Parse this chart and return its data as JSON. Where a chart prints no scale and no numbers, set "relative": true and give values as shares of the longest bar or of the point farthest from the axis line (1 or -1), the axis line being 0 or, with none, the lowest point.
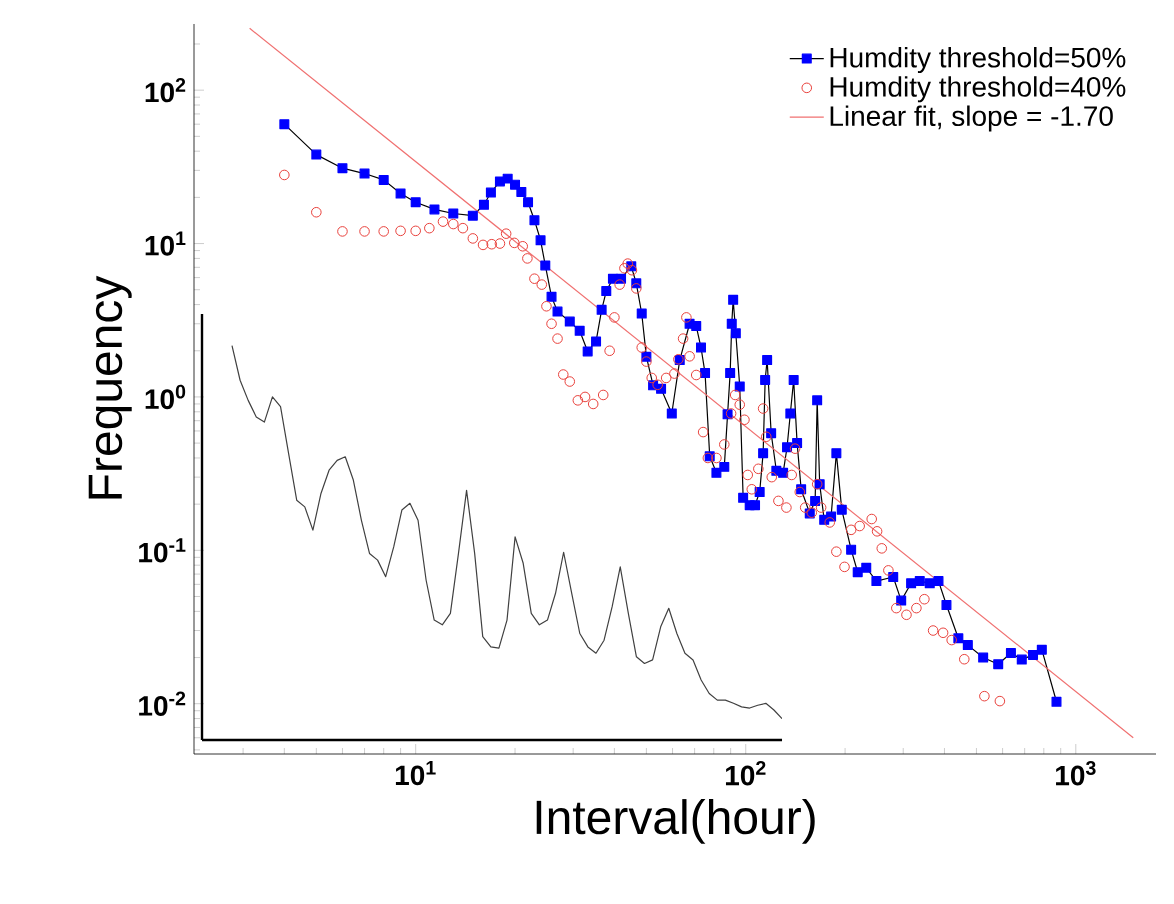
{
  "chart_data": [
    {
      "type": "line",
      "xlabel": "Interval(hour)",
      "ylabel": "Frequency",
      "log": "xy",
      "xlim": [
        2.13,
        1750
      ],
      "ylim": [
        0.0047,
        270
      ],
      "xticks": [
        {
          "value": 10,
          "label": "10$^{1}$"
        },
        {
          "value": 100,
          "label": "10$^{2}$"
        },
        {
          "value": 1000,
          "label": "10$^{3}$"
        }
      ],
      "yticks": [
        {
          "value": 0.01,
          "label": "10$^{-2}$"
        },
        {
          "value": 0.1,
          "label": "10$^{-1}$"
        },
        {
          "value": 1,
          "label": "10$^{0}$"
        },
        {
          "value": 10,
          "label": "10$^{1}$"
        },
        {
          "value": 100,
          "label": "10$^{2}$"
        }
      ],
      "legend": "top right",
      "series": [
        {
          "name": "Humdity threshold=50%",
          "type": "line",
          "marker": "square",
          "color": "#0000ff",
          "x": [
            4.0,
            5.0,
            6.0,
            7.0,
            8.0,
            9.0,
            10,
            11.4,
            13.0,
            14.9,
            16.1,
            16.9,
            18.0,
            19.0,
            20.0,
            20.9,
            21.9,
            22.9,
            23.9,
            24.7,
            25.8,
            26.9,
            29.3,
            31.4,
            33.2,
            35.2,
            36.6,
            37.8,
            39.6,
            41.9,
            45.0,
            46.6,
            48.4,
            50.0,
            52.4,
            55.4,
            59.7,
            63.1,
            67.6,
            70.8,
            73.2,
            75.3,
            77.8,
            81.5,
            86.1,
            88.1,
            89.7,
            90.7,
            91.6,
            93.3,
            95.9,
            98.2,
            102.8,
            106.7,
            110.2,
            112.9,
            114.5,
            116.1,
            119.4,
            123.8,
            129.8,
            133.4,
            136.5,
            139.7,
            143.1,
            147.2,
            156.3,
            162.3,
            164.6,
            167.5,
            172.9,
            181.4,
            188.2,
            195.4,
            208.6,
            218.4,
            231.8,
            248.8,
            279.8,
            295.8,
            317,
            336.7,
            361,
            383.7,
            405.6,
            440.7,
            470.8,
            524,
            582,
            636,
            686,
            742,
            789,
            874
          ],
          "values": [
            60,
            38,
            31,
            28.6,
            26,
            21.2,
            18.6,
            16.7,
            15.7,
            15.2,
            17.9,
            21.5,
            25.4,
            26.5,
            24.2,
            21.7,
            18.6,
            14.2,
            10.5,
            7.2,
            4.5,
            3.6,
            3.1,
            2.7,
            1.98,
            2.3,
            3.7,
            4.9,
            5.9,
            5.9,
            7.1,
            5.5,
            3.5,
            1.83,
            1.19,
            1.13,
            0.78,
            1.74,
            3.0,
            2.9,
            2.1,
            1.43,
            0.41,
            0.32,
            0.35,
            0.77,
            1.43,
            3.0,
            4.3,
            2.6,
            1.17,
            0.22,
            0.197,
            0.197,
            0.24,
            0.43,
            1.29,
            1.74,
            0.58,
            0.33,
            0.32,
            0.47,
            0.78,
            1.29,
            0.5,
            0.25,
            0.174,
            0.21,
            0.95,
            0.27,
            0.158,
            0.166,
            0.43,
            0.184,
            0.101,
            0.072,
            0.077,
            0.063,
            0.067,
            0.047,
            0.061,
            0.063,
            0.061,
            0.063,
            0.044,
            0.0267,
            0.0241,
            0.02,
            0.0181,
            0.0214,
            0.0194,
            0.0208,
            0.0225,
            0.0103
          ]
        },
        {
          "name": "Humdity threshold=40%",
          "type": "scatter",
          "marker": "circle",
          "color": "#e8413c",
          "x": [
            4.0,
            5.0,
            6.0,
            7.0,
            8.0,
            9.0,
            10,
            11.0,
            12.1,
            13.0,
            13.9,
            14.9,
            16.0,
            17.0,
            18.0,
            18.8,
            19.9,
            21.1,
            21.8,
            22.9,
            24.1,
            24.9,
            25.8,
            26.9,
            28.0,
            29.3,
            31.0,
            32.6,
            34.5,
            37.0,
            38.7,
            40.0,
            41.5,
            42.9,
            43.9,
            45.2,
            46.6,
            48.4,
            50.0,
            51.9,
            54.1,
            57.4,
            60.8,
            62.5,
            64.6,
            66.1,
            67.6,
            70.8,
            74.3,
            76.8,
            81.5,
            86.1,
            90.3,
            92.9,
            95.9,
            99.1,
            101.4,
            104.3,
            109.2,
            112.9,
            115.4,
            119.9,
            125.6,
            132.8,
            137.8,
            141.1,
            145.8,
            151.4,
            158.5,
            164.6,
            169.2,
            179.7,
            188.2,
            199.2,
            208.6,
            221.4,
            240.8,
            250,
            258.3,
            270.5,
            285.9,
            306.9,
            328.9,
            347.7,
            369.6,
            396.3,
            420.7,
            459.3,
            528.5,
            588.8
          ],
          "values": [
            28,
            16,
            12,
            12,
            12,
            12.1,
            12.1,
            12.6,
            13.9,
            13.4,
            12.6,
            10.8,
            9.8,
            9.9,
            10.0,
            11.6,
            10.1,
            9.6,
            8.0,
            5.9,
            5.4,
            3.9,
            3.0,
            2.4,
            1.4,
            1.26,
            0.95,
            1.0,
            0.9,
            1.03,
            2.0,
            3.3,
            5.4,
            6.9,
            7.4,
            6.7,
            5.1,
            2.1,
            1.7,
            1.33,
            1.2,
            1.33,
            1.42,
            1.76,
            2.4,
            3.3,
            1.84,
            1.39,
            0.59,
            0.4,
            0.4,
            0.49,
            0.78,
            1.03,
            0.89,
            0.71,
            0.31,
            0.25,
            0.34,
            0.84,
            0.55,
            0.3,
            0.21,
            0.19,
            0.31,
            0.46,
            0.24,
            0.19,
            0.176,
            0.27,
            0.19,
            0.152,
            0.098,
            0.078,
            0.136,
            0.144,
            0.16,
            0.133,
            0.103,
            0.074,
            0.042,
            0.038,
            0.042,
            0.048,
            0.03,
            0.029,
            0.026,
            0.0195,
            0.0112,
            0.0104
          ]
        },
        {
          "name": "Linear fit, slope = -1.70",
          "type": "line",
          "marker": "none",
          "color": "#f07070",
          "x": [
            3.14,
            1493
          ],
          "values": [
            253,
            0.006
          ]
        }
      ]
    },
    {
      "type": "line",
      "relative": true,
      "color": "#404040",
      "categories": [
        null,
        null,
        null,
        null,
        null,
        null,
        null,
        null,
        null,
        null,
        null,
        null,
        null,
        null,
        null,
        null,
        null,
        null,
        null,
        null,
        null,
        null,
        null,
        null,
        null,
        null,
        null,
        null,
        null,
        null,
        null,
        null,
        null,
        null,
        null,
        null,
        null,
        null,
        null,
        null,
        null,
        null,
        null,
        null,
        null,
        null,
        null,
        null,
        null,
        null,
        null,
        null,
        null,
        null,
        null,
        null,
        null,
        null,
        null,
        null,
        null,
        null,
        null,
        null,
        null,
        null,
        null,
        null,
        null
      ],
      "values": [
        1.0,
        0.912,
        0.861,
        0.819,
        0.806,
        0.87,
        0.845,
        0.726,
        0.608,
        0.591,
        0.532,
        0.625,
        0.684,
        0.709,
        0.718,
        0.659,
        0.557,
        0.473,
        0.456,
        0.414,
        0.49,
        0.583,
        0.6,
        0.557,
        0.405,
        0.304,
        0.292,
        0.321,
        0.473,
        0.633,
        0.473,
        0.262,
        0.236,
        0.233,
        0.304,
        0.515,
        0.448,
        0.321,
        0.292,
        0.304,
        0.372,
        0.476,
        0.372,
        0.27,
        0.236,
        0.22,
        0.253,
        0.338,
        0.439,
        0.321,
        0.211,
        0.194,
        0.203,
        0.287,
        0.334,
        0.27,
        0.22,
        0.203,
        0.152,
        0.118,
        0.101,
        0.101,
        0.093,
        0.084,
        0.081,
        0.088,
        0.093,
        0.076,
        0.054
      ]
    }
  ]
}
